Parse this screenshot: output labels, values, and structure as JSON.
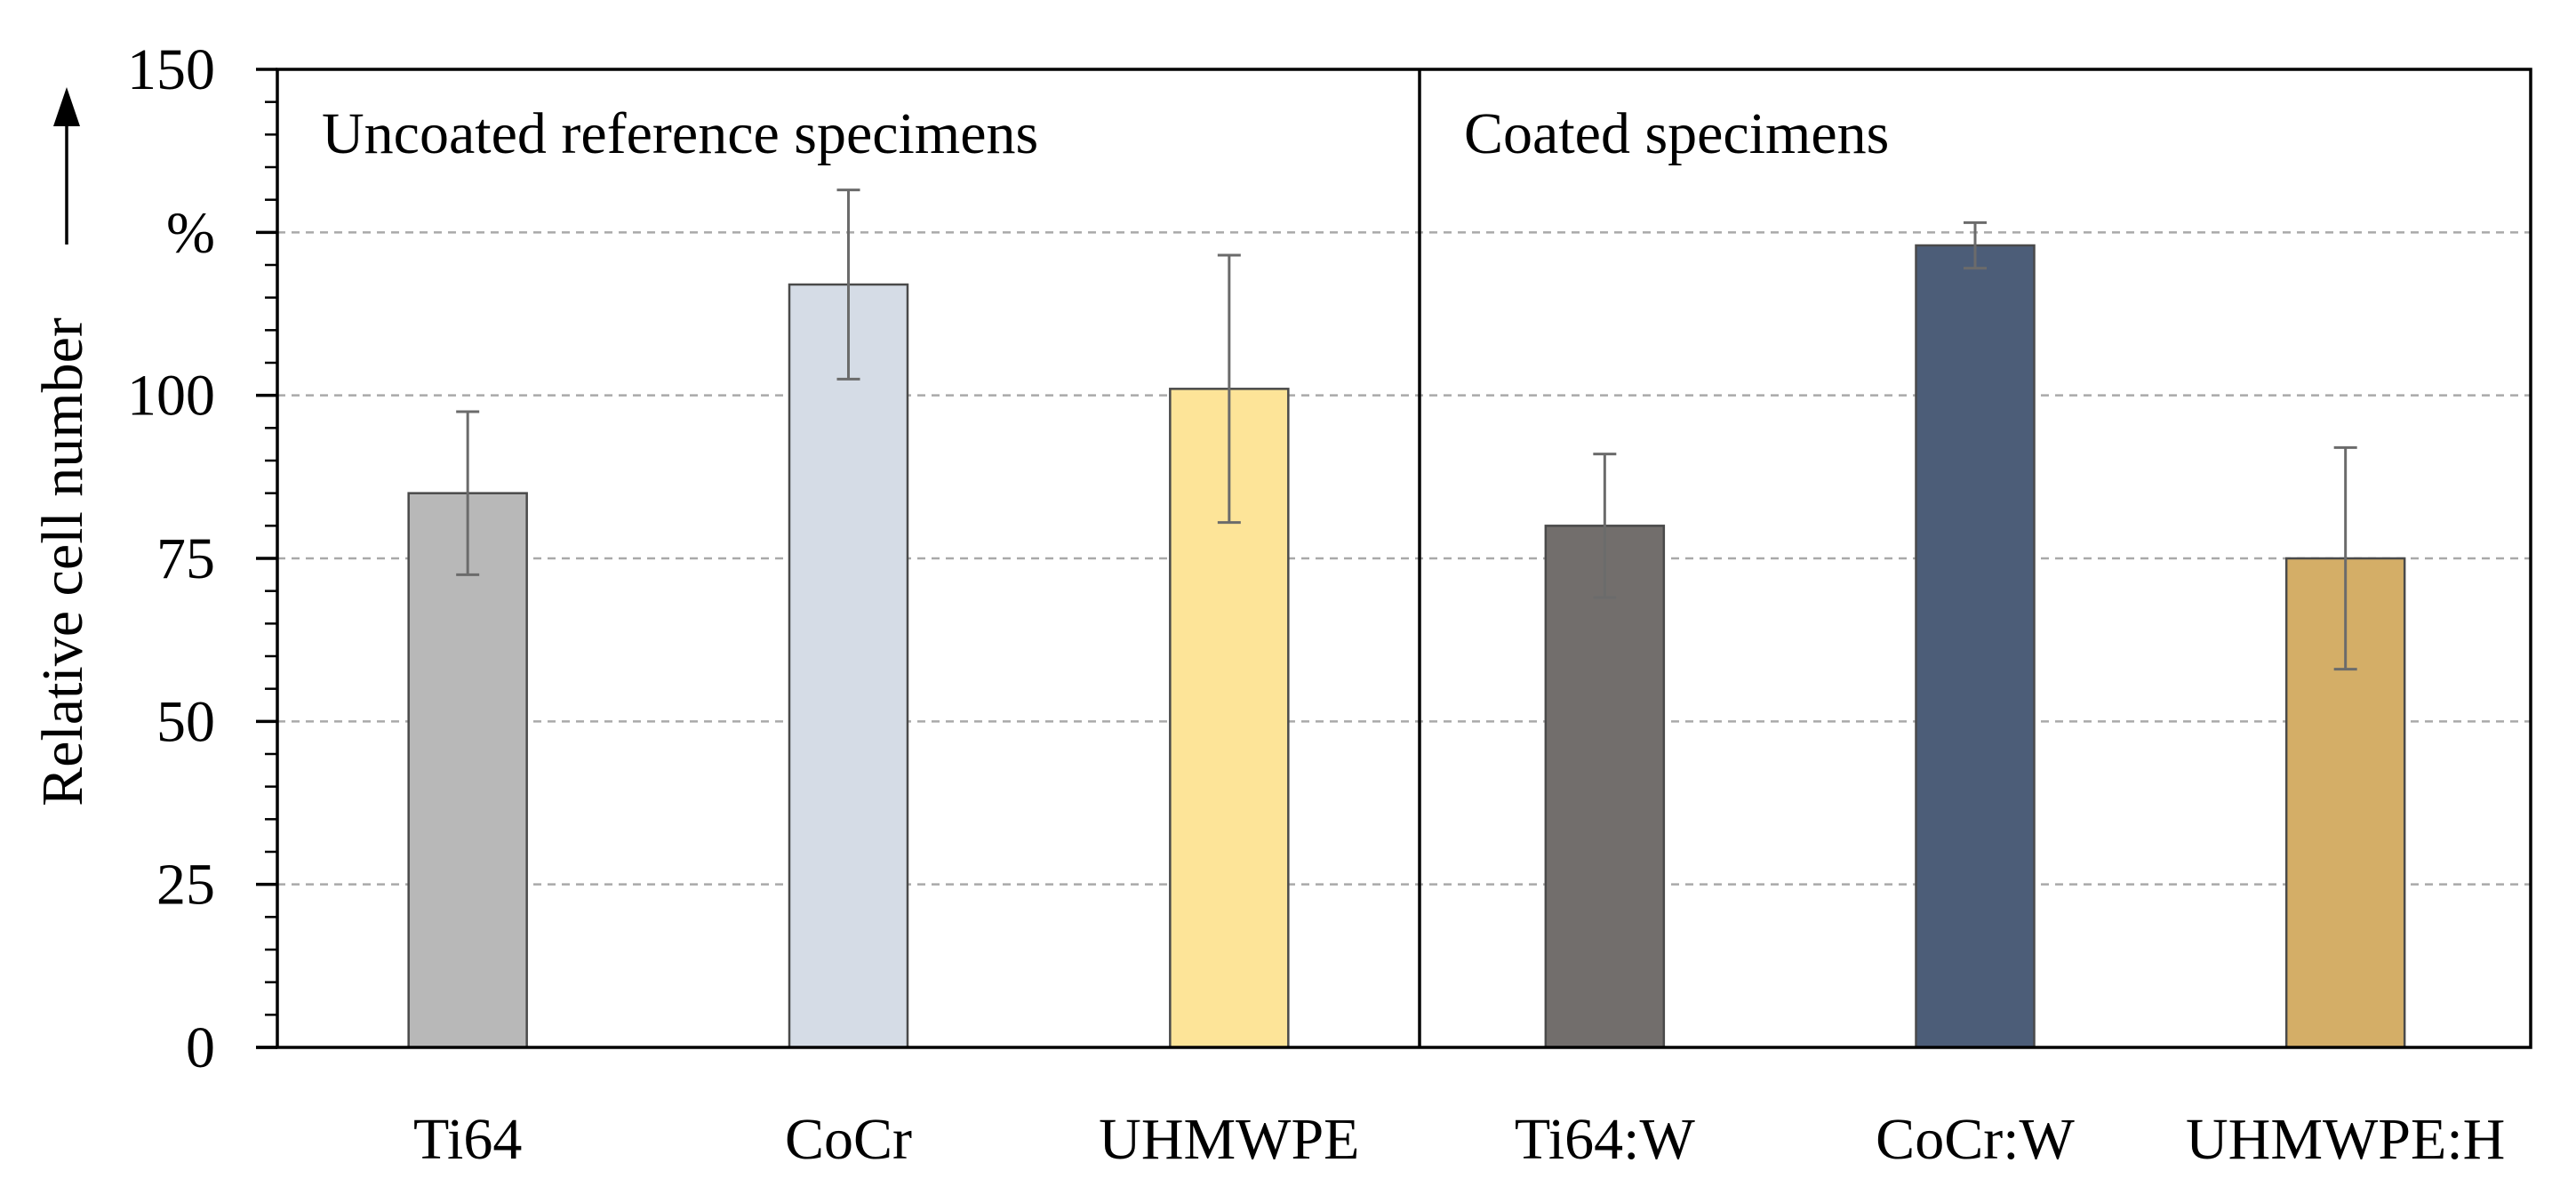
{
  "chart_data": {
    "type": "bar",
    "ylabel": "Relative cell number",
    "yunit": "%",
    "ylim": [
      0,
      150
    ],
    "yticks": [
      0,
      25,
      50,
      75,
      100,
      150
    ],
    "grid": "horizontal dashed",
    "panels": [
      {
        "label": "Uncoated reference specimens",
        "categories": [
          "Ti64",
          "CoCr",
          "UHMWPE"
        ],
        "values": [
          85,
          117,
          101
        ],
        "errors": [
          12.5,
          14.5,
          20.5
        ],
        "colors": [
          "#b8b8b8",
          "#d5dce6",
          "#fde498"
        ]
      },
      {
        "label": "Coated specimens",
        "categories": [
          "Ti64:W",
          "CoCr:W",
          "UHMWPE:H"
        ],
        "values": [
          80,
          123,
          75
        ],
        "errors": [
          11,
          3.5,
          17
        ],
        "colors": [
          "#726e6c",
          "#4c5d78",
          "#d4ae67"
        ]
      }
    ]
  }
}
